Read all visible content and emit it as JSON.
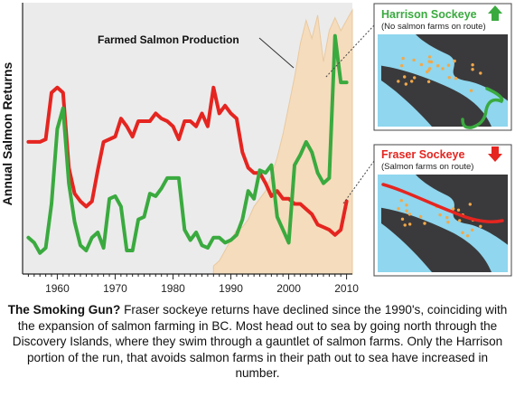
{
  "chart_data": {
    "type": "line",
    "ylabel": "Annual Salmon Returns",
    "xlabel": "",
    "xlim": [
      1954,
      2011
    ],
    "xticks": [
      1960,
      1970,
      1980,
      1990,
      2000,
      2010
    ],
    "yticks_shown": false,
    "background_color": "#ebebeb",
    "area_annotation": "Farmed Salmon Production",
    "area": {
      "name": "Farmed Salmon Production",
      "color": "#f5dcbc",
      "x": [
        1987,
        1988,
        1989,
        1990,
        1991,
        1992,
        1993,
        1994,
        1995,
        1996,
        1997,
        1998,
        1999,
        2000,
        2001,
        2002,
        2003,
        2004,
        2005,
        2006,
        2007,
        2008,
        2009,
        2010,
        2011
      ],
      "y": [
        1,
        3,
        7,
        11,
        15,
        16,
        19,
        24,
        27,
        30,
        36,
        43,
        52,
        63,
        74,
        87,
        96,
        89,
        98,
        80,
        92,
        97,
        92,
        96,
        100
      ]
    },
    "series": [
      {
        "name": "Fraser Sockeye",
        "color": "#e52520",
        "x": [
          1955,
          1956,
          1957,
          1958,
          1959,
          1960,
          1961,
          1962,
          1963,
          1964,
          1965,
          1966,
          1967,
          1968,
          1969,
          1970,
          1971,
          1972,
          1973,
          1974,
          1975,
          1976,
          1977,
          1978,
          1979,
          1980,
          1981,
          1982,
          1983,
          1984,
          1985,
          1986,
          1987,
          1988,
          1989,
          1990,
          1991,
          1992,
          1993,
          1994,
          1995,
          1996,
          1997,
          1998,
          1999,
          2000,
          2001,
          2002,
          2003,
          2004,
          2005,
          2006,
          2007,
          2008,
          2009,
          2010
        ],
        "y": [
          49,
          49,
          49,
          50,
          68,
          70,
          68,
          39,
          29,
          26,
          24,
          26,
          38,
          49,
          50,
          51,
          58,
          55,
          51,
          57,
          57,
          57,
          60,
          58,
          57,
          55,
          50,
          57,
          57,
          55,
          60,
          55,
          70,
          60,
          63,
          60,
          58,
          45,
          39,
          37,
          37,
          33,
          28,
          30,
          27,
          27,
          25,
          25,
          23,
          21,
          17,
          16,
          15,
          13,
          15,
          26
        ]
      },
      {
        "name": "Harrison Sockeye",
        "color": "#3aaa3f",
        "x": [
          1955,
          1956,
          1957,
          1958,
          1959,
          1960,
          1961,
          1962,
          1963,
          1964,
          1965,
          1966,
          1967,
          1968,
          1969,
          1970,
          1971,
          1972,
          1973,
          1974,
          1975,
          1976,
          1977,
          1978,
          1979,
          1980,
          1981,
          1982,
          1983,
          1984,
          1985,
          1986,
          1987,
          1988,
          1989,
          1990,
          1991,
          1992,
          1993,
          1994,
          1995,
          1996,
          1997,
          1998,
          1999,
          2000,
          2001,
          2002,
          2003,
          2004,
          2005,
          2006,
          2007,
          2008,
          2009,
          2010
        ],
        "y": [
          12,
          10,
          6,
          8,
          25,
          54,
          62,
          33,
          18,
          9,
          7,
          12,
          14,
          8,
          27,
          28,
          24,
          7,
          7,
          19,
          20,
          29,
          28,
          31,
          35,
          35,
          35,
          15,
          11,
          14,
          9,
          8,
          12,
          12,
          10,
          11,
          13,
          19,
          30,
          27,
          38,
          37,
          40,
          20,
          15,
          10,
          40,
          44,
          49,
          45,
          37,
          33,
          35,
          90,
          72,
          72
        ]
      }
    ],
    "callouts": [
      {
        "title": "Harrison Sockeye",
        "subtitle": "(No salmon farms on route)",
        "title_color": "#3aaa3f",
        "arrow": "up"
      },
      {
        "title": "Fraser Sockeye",
        "subtitle": "(Salmon farms on route)",
        "title_color": "#e52520",
        "arrow": "down"
      }
    ]
  },
  "caption": {
    "lead": "The Smoking Gun?",
    "body": " Fraser sockeye returns have declined since the 1990's, coinciding with the expansion of salmon farming in BC. Most head out to sea by going north through the Discovery Islands, where they swim through a gauntlet of salmon farms. Only the Harrison portion of the run, that avoids salmon farms in their path out to sea have increased in number."
  }
}
